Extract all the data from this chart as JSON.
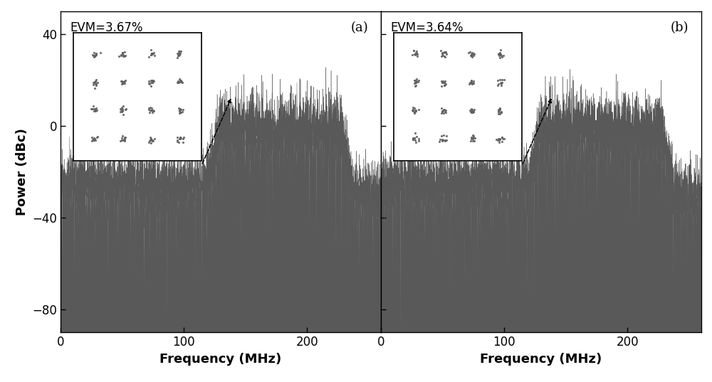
{
  "panels": [
    {
      "label": "(a)",
      "evm": "EVM=3.67%"
    },
    {
      "label": "(b)",
      "evm": "EVM=3.64%"
    }
  ],
  "ylim": [
    -90,
    50
  ],
  "yticks": [
    -80,
    -40,
    0,
    40
  ],
  "xlim": [
    0,
    260
  ],
  "xticks": [
    0,
    100,
    200
  ],
  "xlabel": "Frequency (MHz)",
  "ylabel": "Power (dBc)",
  "signal_color": "#595959",
  "background_color": "#ffffff",
  "signal_start": 128,
  "signal_end": 228,
  "low_band_start": 0,
  "low_band_end": 120,
  "low_base": -25,
  "low_std": 7,
  "sig_base": -2,
  "sig_std": 8,
  "out_base": -30,
  "out_std": 7,
  "spike_std": 25,
  "seeds": [
    42,
    99
  ]
}
